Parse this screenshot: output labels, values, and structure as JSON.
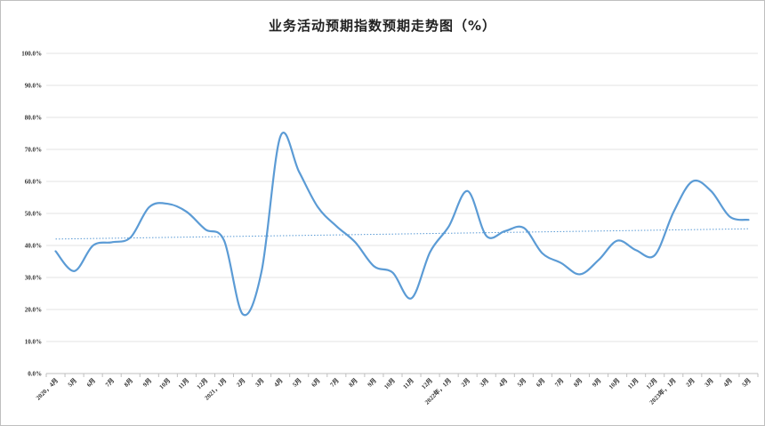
{
  "chart_data": {
    "type": "line",
    "title": "业务活动预期指数预期走势图（%）",
    "y_ticks": [
      "0.0%",
      "10.0%",
      "20.0%",
      "30.0%",
      "40.0%",
      "50.0%",
      "60.0%",
      "70.0%",
      "80.0%",
      "90.0%",
      "100.0%"
    ],
    "ylim": [
      0,
      100
    ],
    "grid": true,
    "categories": [
      "2020，4月",
      "5月",
      "6月",
      "7月",
      "8月",
      "9月",
      "10月",
      "11月",
      "12月",
      "2021，1月",
      "2月",
      "3月",
      "4月",
      "5月",
      "6月",
      "7月",
      "8月",
      "9月",
      "10月",
      "11月",
      "12月",
      "2022年，1月",
      "2月",
      "3月",
      "4月",
      "5月",
      "6月",
      "7月",
      "8月",
      "9月",
      "10月",
      "11月",
      "12月",
      "2023年，1月",
      "2月",
      "3月",
      "4月",
      "5月"
    ],
    "series": [
      {
        "values": [
          38.2,
          32.0,
          40.0,
          41.0,
          42.5,
          52.0,
          53.0,
          50.5,
          45.0,
          41.5,
          18.5,
          32.0,
          74.0,
          63.0,
          52.0,
          46.0,
          41.0,
          33.5,
          31.5,
          23.5,
          38.0,
          46.0,
          57.0,
          43.0,
          44.5,
          45.5,
          37.5,
          34.5,
          31.0,
          35.5,
          41.5,
          38.5,
          37.0,
          50.5,
          60.0,
          57.0,
          49.0,
          48.0
        ],
        "color": "#5b9bd5",
        "trendline": {
          "start": 42.0,
          "end": 45.2,
          "style": "dotted",
          "color": "#5b9bd5"
        }
      }
    ]
  }
}
